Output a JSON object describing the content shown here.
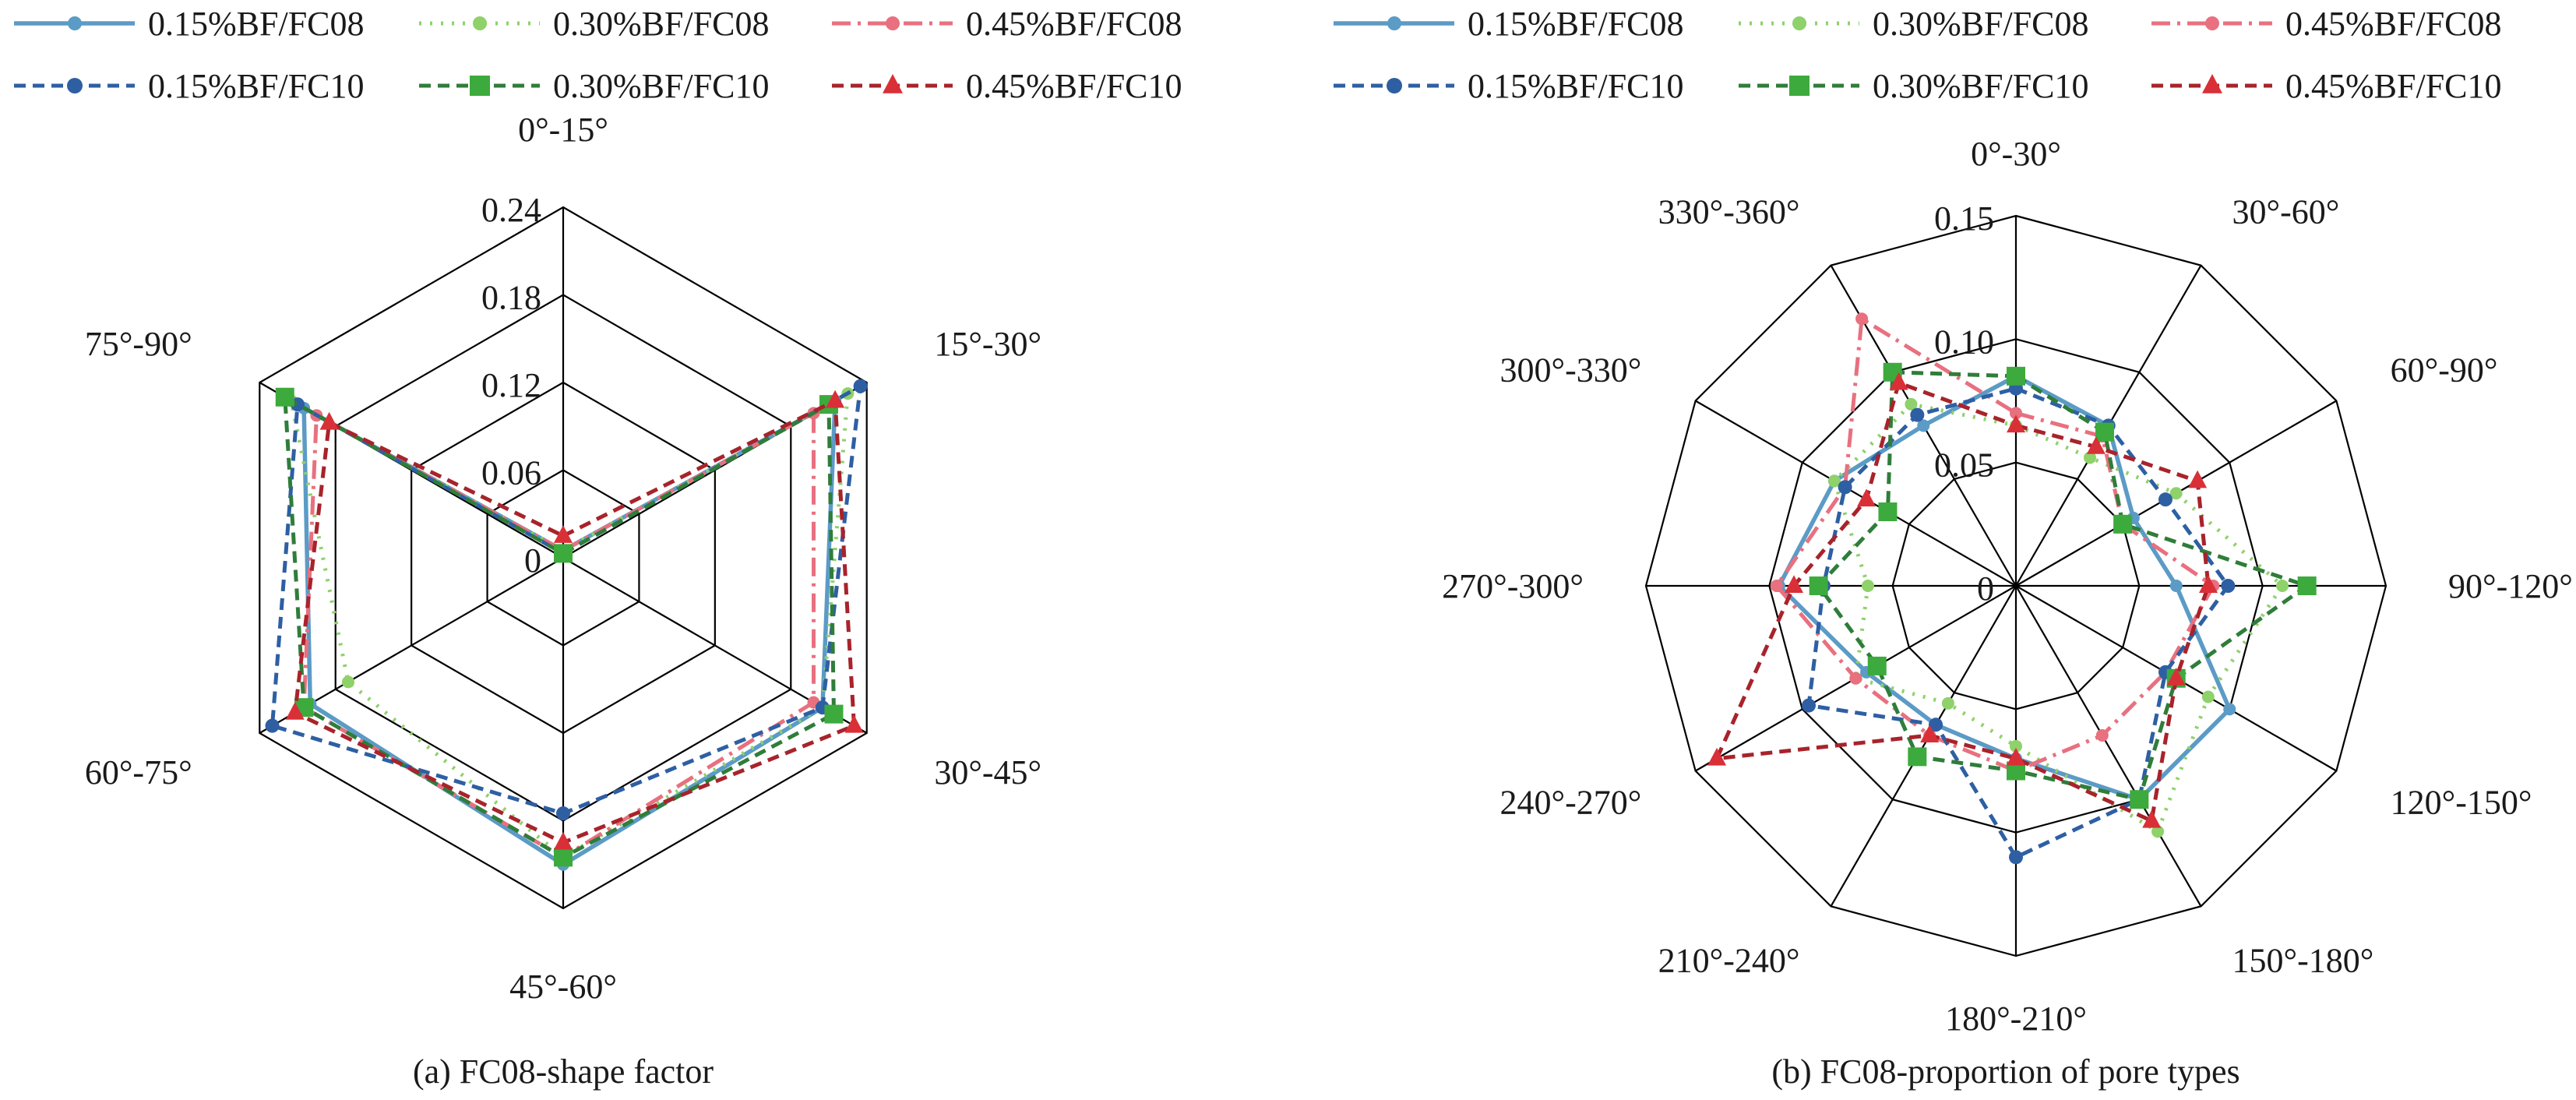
{
  "colors": {
    "blue_light": "#5B9BC6",
    "blue_dark": "#2E5FA3",
    "green_light": "#8FD16A",
    "green_dark": "#2F7D3A",
    "green_marker": "#3DAA3D",
    "pink": "#E8707F",
    "red_dark": "#A8232B",
    "red_marker": "#D93038",
    "grid": "#000000"
  },
  "legend": {
    "row1": [
      "0.15%BF/FC08",
      "0.30%BF/FC08",
      "0.45%BF/FC08"
    ],
    "row2": [
      "0.15%BF/FC10",
      "0.30%BF/FC10",
      "0.45%BF/FC10"
    ]
  },
  "chart_data": [
    {
      "type": "radar",
      "caption": "(a) FC08-shape factor",
      "categories": [
        "0°-15°",
        "15°-30°",
        "30°-45°",
        "45°-60°",
        "60°-75°",
        "75°-90°"
      ],
      "ticks": [
        "0",
        "0.06",
        "0.12",
        "0.18",
        "0.24"
      ],
      "range": [
        0,
        0.24
      ],
      "series": [
        {
          "name": "0.15%BF/FC08",
          "values": [
            0.005,
            0.215,
            0.205,
            0.21,
            0.2,
            0.205
          ]
        },
        {
          "name": "0.30%BF/FC08",
          "values": [
            0.005,
            0.225,
            0.205,
            0.205,
            0.17,
            0.215
          ]
        },
        {
          "name": "0.45%BF/FC08",
          "values": [
            0.005,
            0.198,
            0.198,
            0.205,
            0.205,
            0.195
          ]
        },
        {
          "name": "0.15%BF/FC10",
          "values": [
            0.003,
            0.235,
            0.205,
            0.175,
            0.23,
            0.21
          ]
        },
        {
          "name": "0.30%BF/FC10",
          "values": [
            0.003,
            0.21,
            0.214,
            0.205,
            0.205,
            0.22
          ]
        },
        {
          "name": "0.45%BF/FC10",
          "values": [
            0.015,
            0.215,
            0.23,
            0.195,
            0.212,
            0.185
          ]
        }
      ]
    },
    {
      "type": "radar",
      "caption": "(b) FC08-proportion of pore types",
      "categories": [
        "0°-30°",
        "30°-60°",
        "60°-90°",
        "90°-120°",
        "120°-150°",
        "150°-180°",
        "180°-210°",
        "210°-240°",
        "240°-270°",
        "270°-300°",
        "300°-330°",
        "330°-360°"
      ],
      "ticks": [
        "0",
        "0.05",
        "0.10",
        "0.15"
      ],
      "range": [
        0,
        0.15
      ],
      "series": [
        {
          "name": "0.15%BF/FC08",
          "values": [
            0.085,
            0.075,
            0.055,
            0.065,
            0.1,
            0.1,
            0.07,
            0.065,
            0.07,
            0.096,
            0.085,
            0.075
          ]
        },
        {
          "name": "0.30%BF/FC08",
          "values": [
            0.065,
            0.06,
            0.075,
            0.108,
            0.09,
            0.115,
            0.065,
            0.055,
            0.075,
            0.06,
            0.085,
            0.085
          ]
        },
        {
          "name": "0.45%BF/FC08",
          "values": [
            0.07,
            0.07,
            0.05,
            0.08,
            0.07,
            0.07,
            0.075,
            0.07,
            0.075,
            0.097,
            0.08,
            0.125
          ]
        },
        {
          "name": "0.15%BF/FC10",
          "values": [
            0.08,
            0.075,
            0.07,
            0.086,
            0.07,
            0.1,
            0.11,
            0.065,
            0.097,
            0.078,
            0.08,
            0.08
          ]
        },
        {
          "name": "0.30%BF/FC10",
          "values": [
            0.085,
            0.072,
            0.05,
            0.118,
            0.075,
            0.1,
            0.075,
            0.08,
            0.065,
            0.08,
            0.06,
            0.1
          ]
        },
        {
          "name": "0.45%BF/FC10",
          "values": [
            0.065,
            0.065,
            0.085,
            0.078,
            0.075,
            0.11,
            0.07,
            0.07,
            0.14,
            0.09,
            0.07,
            0.095
          ]
        }
      ]
    }
  ]
}
